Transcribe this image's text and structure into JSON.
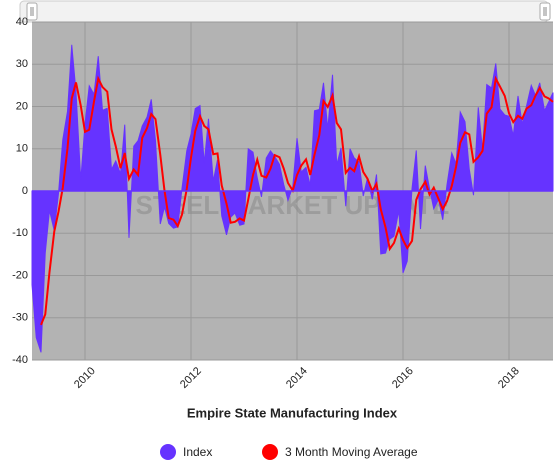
{
  "chart_data": {
    "type": "area-line",
    "title": "Empire State Manufacturing Index",
    "watermark": "STEEL MARKET UPDATE",
    "x": [
      2009,
      2009.08,
      2009.17,
      2009.25,
      2009.33,
      2009.42,
      2009.5,
      2009.58,
      2009.67,
      2009.75,
      2009.83,
      2009.92,
      2010,
      2010.08,
      2010.17,
      2010.25,
      2010.33,
      2010.42,
      2010.5,
      2010.58,
      2010.67,
      2010.75,
      2010.83,
      2010.92,
      2011,
      2011.08,
      2011.17,
      2011.25,
      2011.33,
      2011.42,
      2011.5,
      2011.58,
      2011.67,
      2011.75,
      2011.83,
      2011.92,
      2012,
      2012.08,
      2012.17,
      2012.25,
      2012.33,
      2012.42,
      2012.5,
      2012.58,
      2012.67,
      2012.75,
      2012.83,
      2012.92,
      2013,
      2013.08,
      2013.17,
      2013.25,
      2013.33,
      2013.42,
      2013.5,
      2013.58,
      2013.67,
      2013.75,
      2013.83,
      2013.92,
      2014,
      2014.08,
      2014.17,
      2014.25,
      2014.33,
      2014.42,
      2014.5,
      2014.58,
      2014.67,
      2014.75,
      2014.83,
      2014.92,
      2015,
      2015.08,
      2015.17,
      2015.25,
      2015.33,
      2015.42,
      2015.5,
      2015.58,
      2015.67,
      2015.75,
      2015.83,
      2015.92,
      2016,
      2016.08,
      2016.17,
      2016.25,
      2016.33,
      2016.42,
      2016.5,
      2016.58,
      2016.67,
      2016.75,
      2016.83,
      2016.92,
      2017,
      2017.08,
      2017.17,
      2017.25,
      2017.33,
      2017.42,
      2017.5,
      2017.58,
      2017.67,
      2017.75,
      2017.83,
      2017.92,
      2018,
      2018.08,
      2018.17,
      2018.25,
      2018.33,
      2018.42,
      2018.5,
      2018.58,
      2018.67,
      2018.75,
      2018.83
    ],
    "series": [
      {
        "name": "Index",
        "type": "area",
        "color": "#6633ff",
        "values": [
          -22.2,
          -34.7,
          -38.2,
          -14.7,
          -4.6,
          -9.4,
          -0.6,
          12.1,
          18.9,
          34.6,
          23.5,
          2.6,
          15.9,
          24.9,
          22.9,
          31.9,
          19.1,
          19.6,
          5.1,
          7.1,
          4.1,
          15.7,
          -11.1,
          10.6,
          11.9,
          15.4,
          17.5,
          21.7,
          11.9,
          -7.8,
          -3.8,
          -7.7,
          -8.8,
          -8.5,
          0.6,
          9.5,
          13.5,
          19.5,
          20.2,
          6.6,
          17.1,
          2.3,
          7.4,
          -5.9,
          -10.4,
          -6.2,
          -5.2,
          -8.1,
          -7.8,
          10.0,
          9.2,
          3.1,
          -1.4,
          7.8,
          9.5,
          8.2,
          6.3,
          1.5,
          -2.2,
          1.0,
          12.5,
          4.5,
          5.6,
          1.3,
          19.0,
          19.3,
          25.6,
          14.7,
          27.5,
          6.2,
          10.2,
          -3.6,
          10.0,
          7.8,
          6.9,
          -1.2,
          3.1,
          -2.0,
          3.9,
          -14.9,
          -14.7,
          -11.4,
          -10.7,
          -4.6,
          -19.4,
          -16.6,
          0.6,
          9.6,
          -9.0,
          6.0,
          0.6,
          -4.2,
          -2.0,
          -6.8,
          1.5,
          9.0,
          6.5,
          18.7,
          16.4,
          5.2,
          -1.0,
          19.8,
          9.8,
          25.2,
          24.4,
          30.2,
          19.4,
          18.0,
          17.7,
          13.1,
          22.5,
          15.8,
          20.1,
          25.0,
          22.6,
          25.6,
          19.0,
          21.1,
          23.3
        ]
      },
      {
        "name": "3 Month Moving Average",
        "type": "line",
        "color": "#ff0000",
        "values": [
          null,
          null,
          -31.7,
          -29.2,
          -19.2,
          -9.6,
          -4.9,
          0.7,
          10.1,
          21.9,
          25.7,
          20.2,
          14.0,
          14.5,
          21.2,
          26.6,
          24.6,
          23.5,
          14.6,
          10.6,
          5.4,
          9.0,
          2.9,
          5.1,
          3.8,
          12.6,
          14.9,
          18.2,
          17.0,
          8.6,
          0.1,
          -6.4,
          -6.8,
          -8.3,
          -5.6,
          0.5,
          7.9,
          14.2,
          17.7,
          15.4,
          14.6,
          8.7,
          8.9,
          1.3,
          -3.0,
          -7.5,
          -7.3,
          -6.5,
          -7.0,
          -2.0,
          3.8,
          7.4,
          3.6,
          3.2,
          5.3,
          8.5,
          8.0,
          5.3,
          1.9,
          0.1,
          3.8,
          6.0,
          7.5,
          3.8,
          8.6,
          13.2,
          21.3,
          19.9,
          22.6,
          16.1,
          14.6,
          4.3,
          5.5,
          4.7,
          8.2,
          4.5,
          2.9,
          0.0,
          1.7,
          -4.3,
          -8.6,
          -13.7,
          -12.3,
          -8.9,
          -11.6,
          -13.5,
          -11.8,
          -2.1,
          0.4,
          2.2,
          -0.8,
          0.8,
          -1.9,
          -4.3,
          -2.4,
          1.2,
          5.7,
          11.4,
          13.9,
          13.4,
          6.9,
          8.0,
          9.5,
          18.3,
          19.8,
          26.6,
          24.7,
          22.5,
          18.4,
          16.3,
          17.8,
          17.1,
          19.5,
          20.3,
          22.6,
          24.4,
          22.4,
          21.9,
          21.1
        ]
      }
    ],
    "xlim": [
      2009,
      2018.83
    ],
    "xticks": [
      2010,
      2012,
      2014,
      2016,
      2018
    ],
    "ylim": [
      -40,
      40
    ],
    "yticks": [
      -40,
      -30,
      -20,
      -10,
      0,
      10,
      20,
      30,
      40
    ],
    "grid": true,
    "legend": "bottom"
  }
}
